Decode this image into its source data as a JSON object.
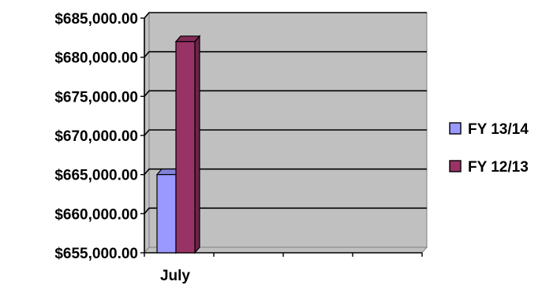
{
  "chart_data": {
    "type": "bar",
    "categories": [
      "July"
    ],
    "series": [
      {
        "name": "FY 13/14",
        "values": [
          665000
        ],
        "color": "#9999ff"
      },
      {
        "name": "FY 12/13",
        "values": [
          682000
        ],
        "color": "#993366"
      }
    ],
    "ylim": [
      655000,
      685000
    ],
    "yticks": [
      "$655,000.00",
      "$660,000.00",
      "$665,000.00",
      "$670,000.00",
      "$675,000.00",
      "$680,000.00",
      "$685,000.00"
    ],
    "ytick_values": [
      655000,
      660000,
      665000,
      670000,
      675000,
      680000,
      685000
    ],
    "grid": true,
    "legend": "right",
    "plot_background": "#c0c0c0"
  }
}
